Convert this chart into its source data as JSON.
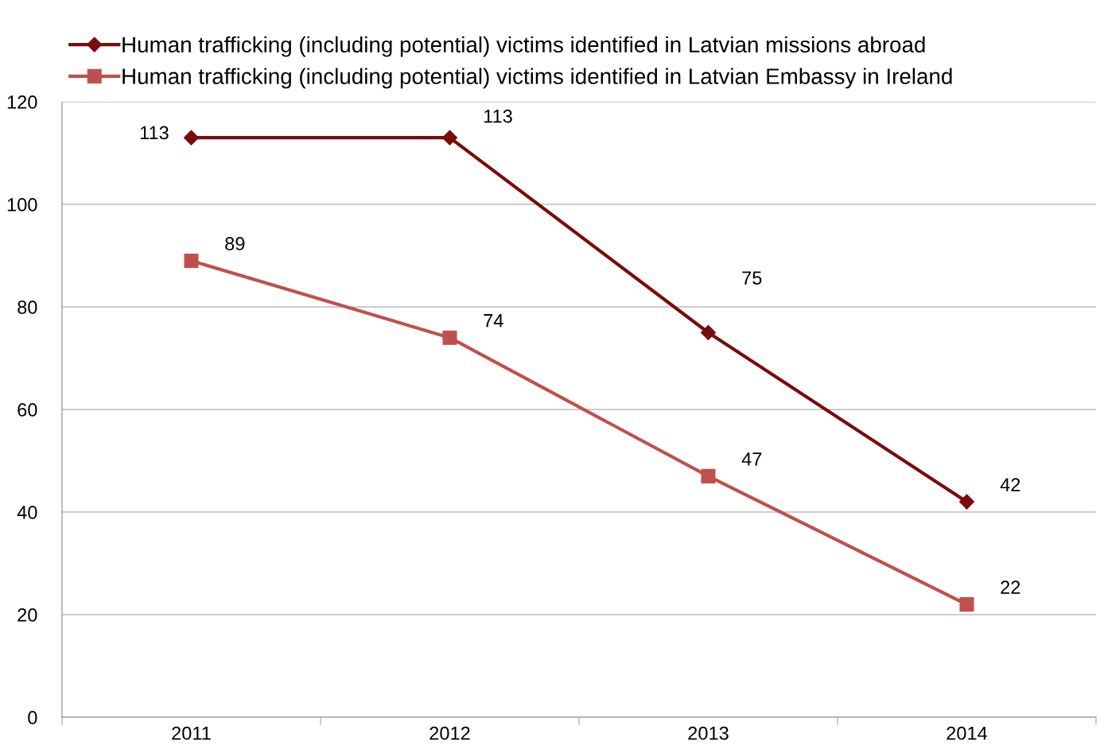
{
  "chart_data": {
    "type": "line",
    "categories": [
      "2011",
      "2012",
      "2013",
      "2014"
    ],
    "series": [
      {
        "name": "Human trafficking (including potential) victims identified in Latvian missions abroad",
        "color": "#7a0c0c",
        "marker": "diamond",
        "values": [
          113,
          113,
          75,
          42
        ]
      },
      {
        "name": "Human trafficking (including potential) victims identified in Latvian Embassy in Ireland",
        "color": "#c0504d",
        "marker": "square",
        "values": [
          89,
          74,
          47,
          22
        ]
      }
    ],
    "ylim": [
      0,
      120
    ],
    "yticks": [
      0,
      20,
      40,
      60,
      80,
      100,
      120
    ],
    "grid": "y",
    "legend": "top left",
    "data_labels": true,
    "line_style": "solid"
  }
}
